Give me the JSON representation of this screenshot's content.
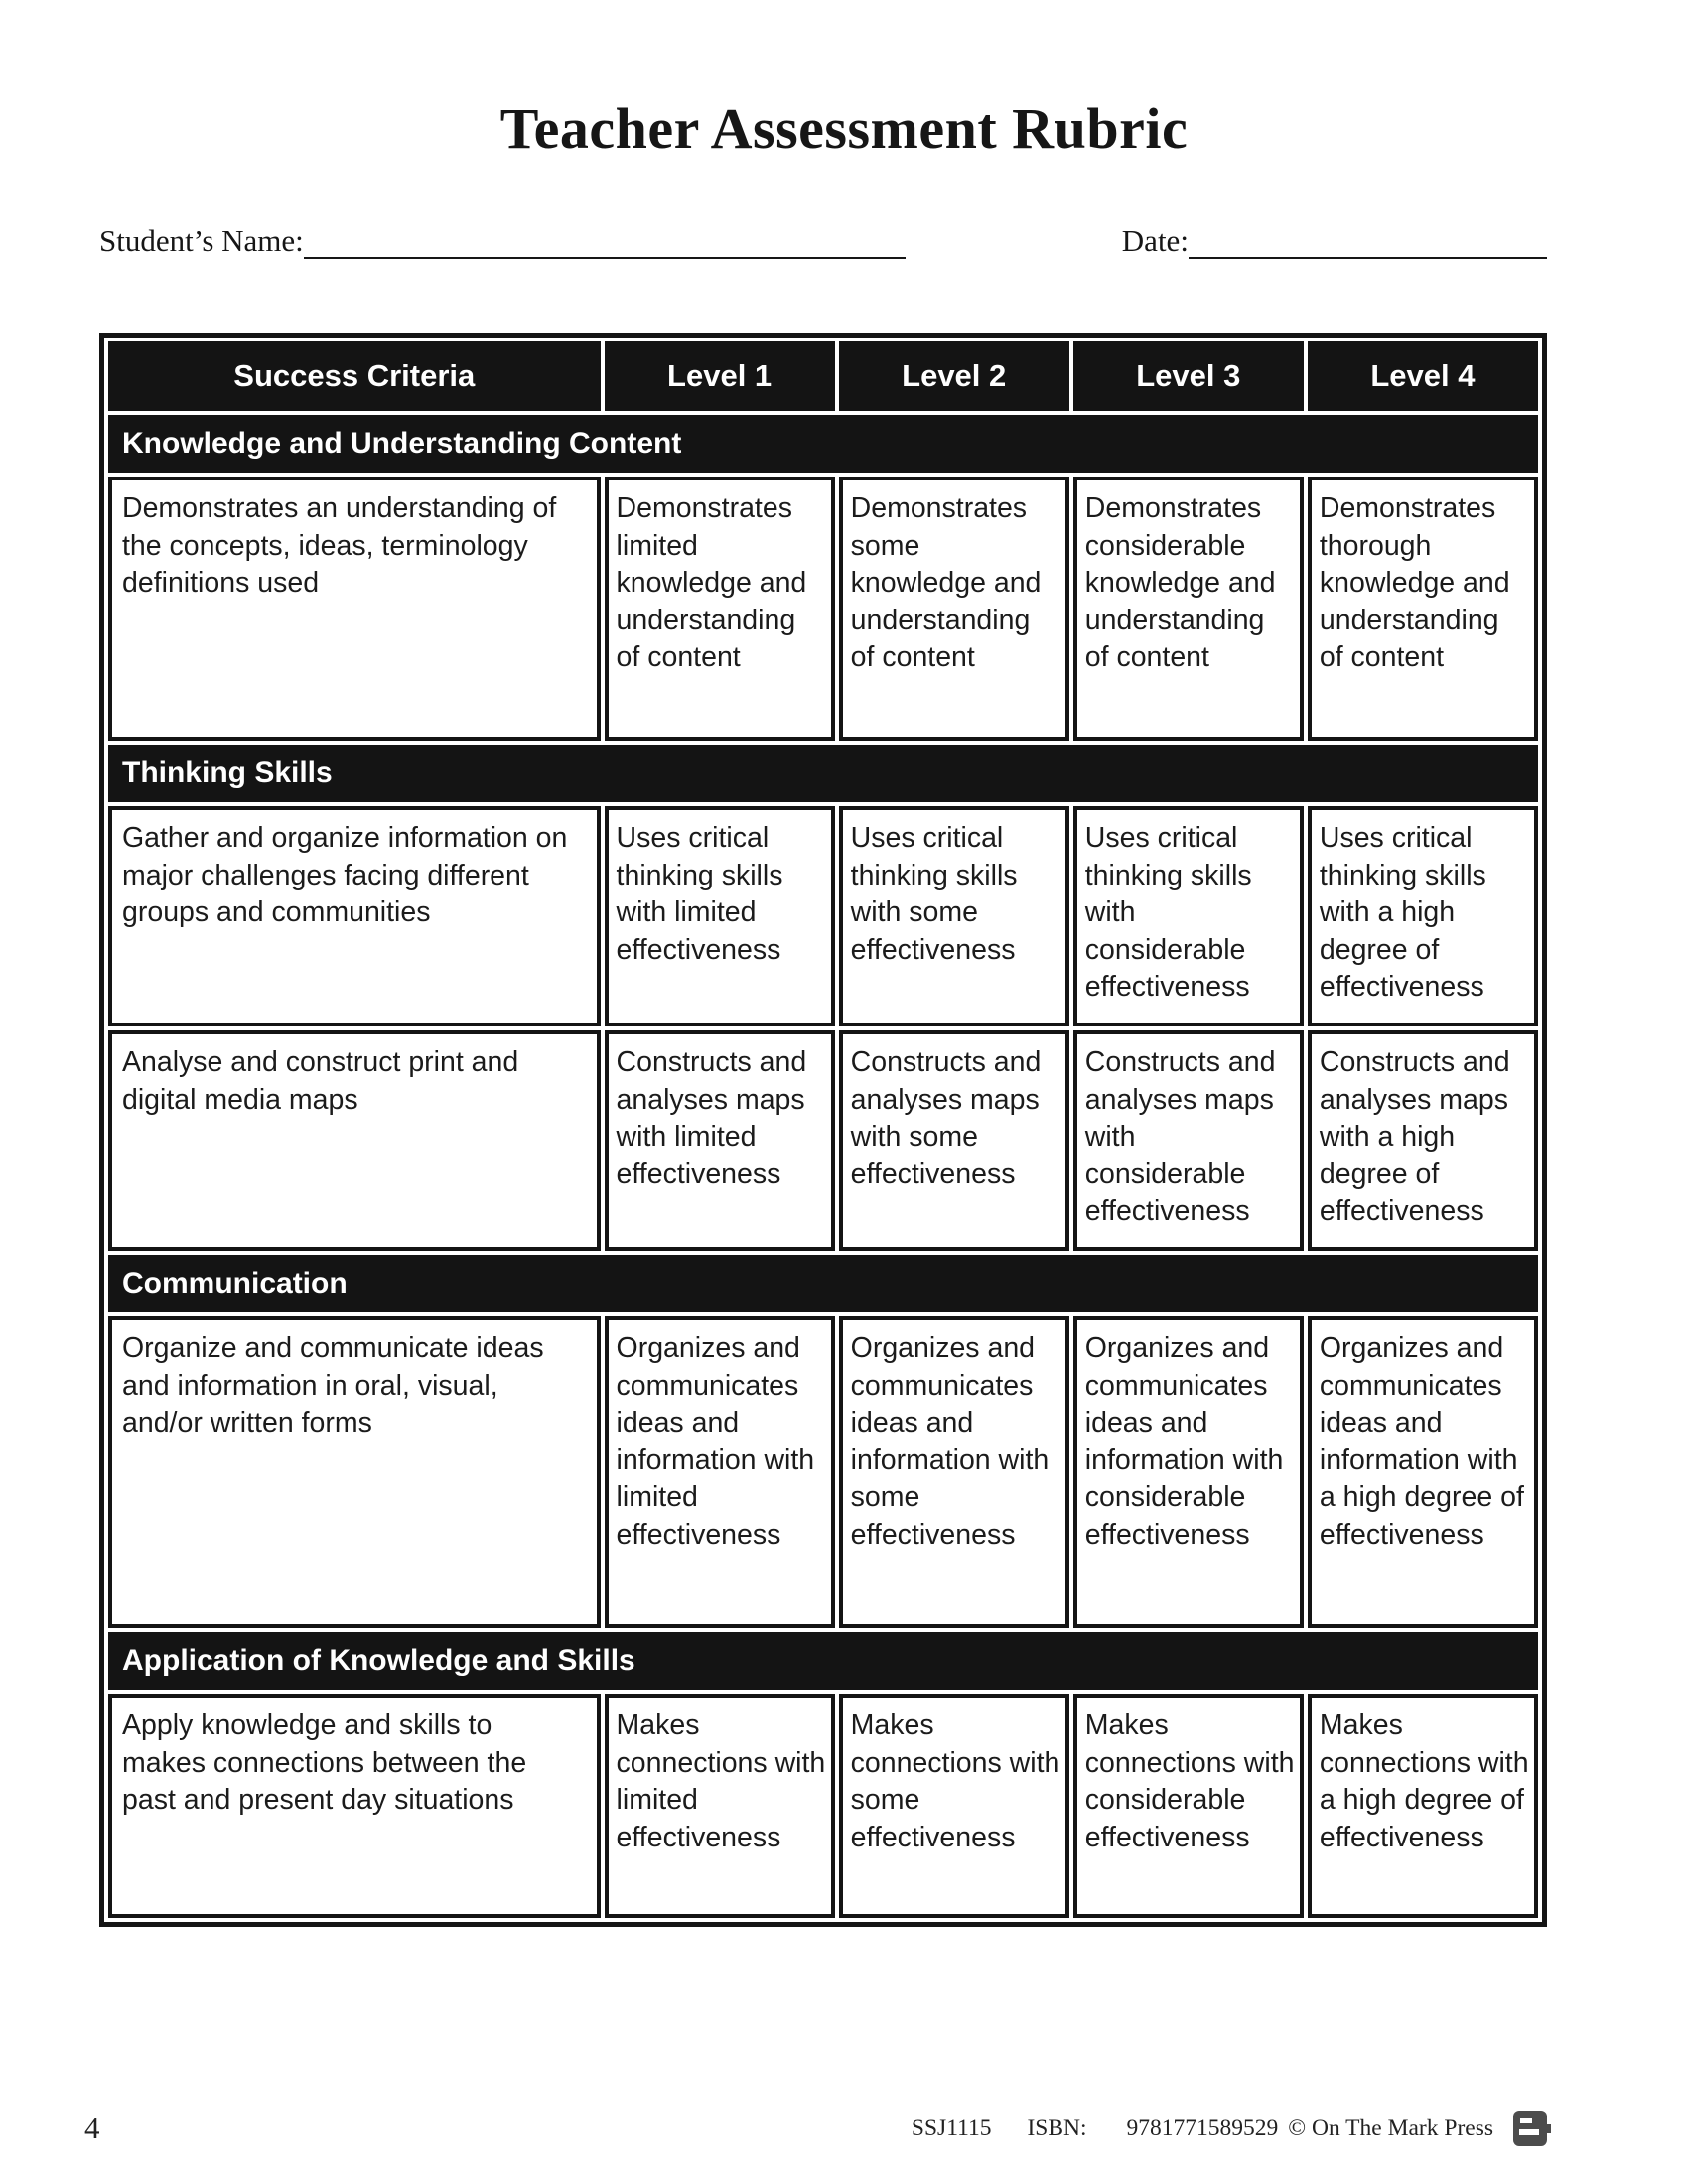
{
  "page": {
    "title": "Teacher Assessment Rubric",
    "student_name_label": "Student’s Name:",
    "date_label": "Date:",
    "page_number": "4"
  },
  "footer": {
    "code": "SSJ1115",
    "isbn_label": "ISBN:",
    "isbn": "9781771589529",
    "copyright": "© On The Mark Press",
    "logo_icon": "publisher-logo-icon"
  },
  "rubric": {
    "columns": [
      "Success Criteria",
      "Level 1",
      "Level 2",
      "Level 3",
      "Level 4"
    ],
    "sections": [
      {
        "heading": "Knowledge and Understanding Content",
        "rows": [
          {
            "criteria": "Demonstrates an understanding of the concepts, ideas, terminology definitions used",
            "levels": [
              "Demonstrates limited knowledge and understanding of content",
              "Demonstrates some knowledge and understanding of content",
              "Demonstrates considerable knowledge and understanding of content",
              "Demonstrates thorough knowledge and understanding of content"
            ]
          }
        ]
      },
      {
        "heading": "Thinking Skills",
        "rows": [
          {
            "criteria": "Gather and organize information on major challenges facing different groups and communities",
            "levels": [
              "Uses critical thinking skills with limited effectiveness",
              "Uses critical thinking skills with some effectiveness",
              "Uses critical thinking skills with considerable effectiveness",
              "Uses critical thinking skills with a high degree of effectiveness"
            ]
          },
          {
            "criteria": "Analyse and construct print and digital media maps",
            "levels": [
              "Constructs and analyses maps with limited effectiveness",
              "Constructs and analyses maps with some effectiveness",
              "Constructs and analyses maps with considerable effectiveness",
              "Constructs and analyses maps with a high degree of effectiveness"
            ]
          }
        ]
      },
      {
        "heading": "Communication",
        "rows": [
          {
            "criteria": "Organize and communicate ideas and information in oral, visual, and/or written forms",
            "levels": [
              "Organizes and communicates ideas and information with limited effectiveness",
              "Organizes and communicates ideas and information with some effectiveness",
              "Organizes and communicates ideas and information with considerable effectiveness",
              "Organizes and communicates ideas and information with a high degree of effectiveness"
            ]
          }
        ]
      },
      {
        "heading": "Application of Knowledge and Skills",
        "rows": [
          {
            "criteria": "Apply knowledge and skills to makes connections between the past and present day situations",
            "levels": [
              "Makes connections with limited effectiveness",
              "Makes connections with some effectiveness",
              "Makes connections with considerable effectiveness",
              "Makes connections with a high degree of effectiveness"
            ]
          }
        ]
      }
    ]
  }
}
